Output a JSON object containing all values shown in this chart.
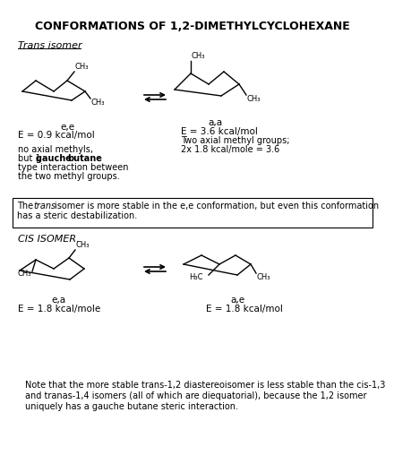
{
  "title": "CONFORMATIONS OF 1,2-DIMETHYLCYCLOHEXANE",
  "background_color": "#ffffff",
  "trans_label": "Trans isomer",
  "ee_label": "e,e",
  "ee_energy": "E = 0.9 kcal/mol",
  "ee_note_line1": "no axial methyls,",
  "ee_note_line2_pre": "but 1 ",
  "ee_note_line2_bold1": "gauche ",
  "ee_note_line2_bold2": "butane",
  "ee_note_line3": "type interaction between",
  "ee_note_line4": "the two methyl groups.",
  "aa_label": "a,a",
  "aa_energy_line1": "E = 3.6 kcal/mol",
  "aa_energy_line2": "Two axial methyl groups;",
  "aa_energy_line3": "2x 1.8 kcal/mole = 3.6",
  "box_text_line1": "The trans isomer is more stable in the e,e conformation, but even this conformation",
  "box_text_line2": "has a steric destabilization.",
  "box_text_italic": "trans",
  "cis_label": "CIS ISOMER.",
  "ea_label": "e,a",
  "ea_energy": "E = 1.8 kcal/mole",
  "ae_label": "a,e",
  "ae_energy": "E = 1.8 kcal/mol",
  "note_line1": "Note that the more stable trans-1,2 diastereoisomer is less stable than the cis-1,3",
  "note_line2": "and tranas-1,4 isomers (all of which are diequatorial), because the 1,2 isomer",
  "note_line3": "uniquely has a gauche butane steric interaction."
}
